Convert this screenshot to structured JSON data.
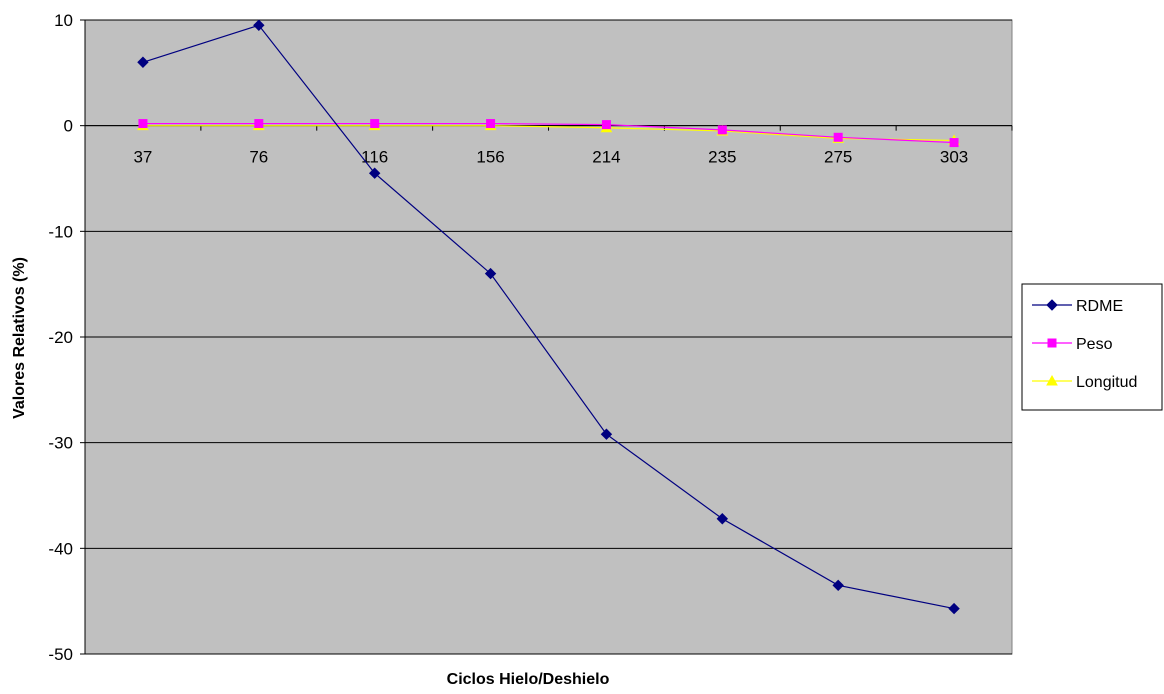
{
  "chart_data": {
    "type": "line",
    "title": "",
    "xlabel": "Ciclos Hielo/Deshielo",
    "ylabel": "Valores Relativos (%)",
    "categories": [
      "37",
      "76",
      "116",
      "156",
      "214",
      "235",
      "275",
      "303"
    ],
    "ylim": [
      -50,
      10
    ],
    "yticks": [
      10,
      0,
      -10,
      -20,
      -30,
      -40,
      -50
    ],
    "grid": "horizontal",
    "legend_position": "right",
    "plot_background": "#c0c0c0",
    "series": [
      {
        "name": "RDME",
        "color": "#000080",
        "marker": "diamond",
        "values": [
          6,
          9.5,
          -4.5,
          -14,
          -29.2,
          -37.2,
          -43.5,
          -45.7
        ]
      },
      {
        "name": "Peso",
        "color": "#ff00ff",
        "marker": "square",
        "values": [
          0.2,
          0.2,
          0.2,
          0.2,
          0.1,
          -0.4,
          -1.1,
          -1.6
        ]
      },
      {
        "name": "Longitud",
        "color": "#ffff00",
        "marker": "triangle",
        "values": [
          0,
          0,
          0,
          0,
          -0.2,
          -0.5,
          -1.2,
          -1.4
        ]
      }
    ]
  }
}
